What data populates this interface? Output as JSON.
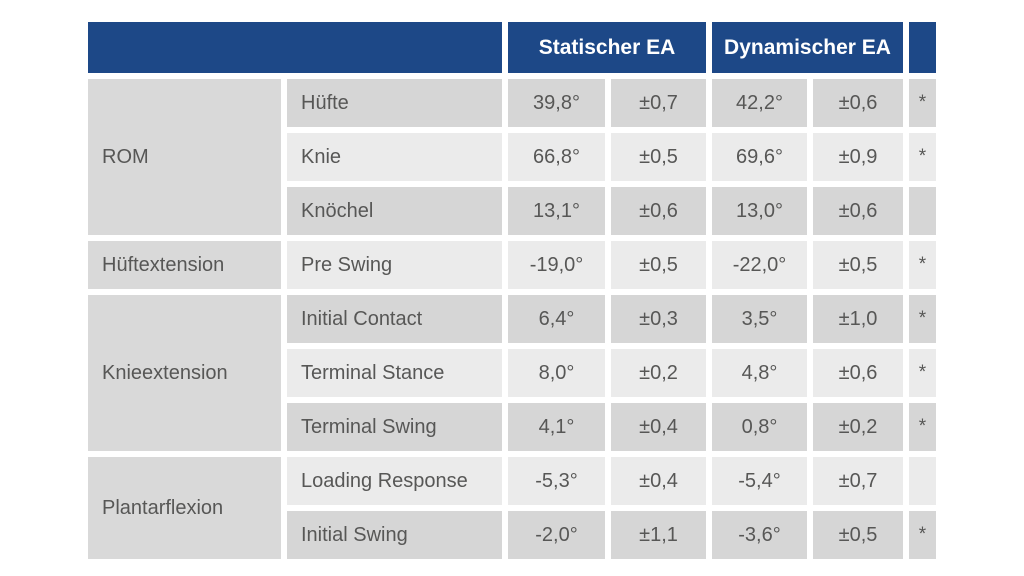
{
  "chart_data": {
    "type": "table",
    "title": "",
    "header": {
      "static_ea": "Statischer EA",
      "dynamic_ea": "Dynamischer EA",
      "significance_marker": "*"
    },
    "groups": [
      {
        "label": "ROM",
        "rowspan": 3
      },
      {
        "label": "Hüftextension",
        "rowspan": 1
      },
      {
        "label": "Knieextension",
        "rowspan": 3
      },
      {
        "label": "Plantarflexion",
        "rowspan": 2
      }
    ],
    "rows": [
      {
        "group": "ROM",
        "phase": "Hüfte",
        "static_mean": "39,8°",
        "static_sd": "±0,7",
        "dynamic_mean": "42,2°",
        "dynamic_sd": "±0,6",
        "significant": "*"
      },
      {
        "group": "ROM",
        "phase": "Knie",
        "static_mean": "66,8°",
        "static_sd": "±0,5",
        "dynamic_mean": "69,6°",
        "dynamic_sd": "±0,9",
        "significant": "*"
      },
      {
        "group": "ROM",
        "phase": "Knöchel",
        "static_mean": "13,1°",
        "static_sd": "±0,6",
        "dynamic_mean": "13,0°",
        "dynamic_sd": "±0,6",
        "significant": ""
      },
      {
        "group": "Hüftextension",
        "phase": "Pre Swing",
        "static_mean": "-19,0°",
        "static_sd": "±0,5",
        "dynamic_mean": "-22,0°",
        "dynamic_sd": "±0,5",
        "significant": "*"
      },
      {
        "group": "Knieextension",
        "phase": "Initial Contact",
        "static_mean": "6,4°",
        "static_sd": "±0,3",
        "dynamic_mean": "3,5°",
        "dynamic_sd": "±1,0",
        "significant": "*"
      },
      {
        "group": "Knieextension",
        "phase": "Terminal Stance",
        "static_mean": "8,0°",
        "static_sd": "±0,2",
        "dynamic_mean": "4,8°",
        "dynamic_sd": "±0,6",
        "significant": "*"
      },
      {
        "group": "Knieextension",
        "phase": "Terminal Swing",
        "static_mean": "4,1°",
        "static_sd": "±0,4",
        "dynamic_mean": "0,8°",
        "dynamic_sd": "±0,2",
        "significant": "*"
      },
      {
        "group": "Plantarflexion",
        "phase": "Loading Response",
        "static_mean": "-5,3°",
        "static_sd": "±0,4",
        "dynamic_mean": "-5,4°",
        "dynamic_sd": "±0,7",
        "significant": ""
      },
      {
        "group": "Plantarflexion",
        "phase": "Initial Swing",
        "static_mean": "-2,0°",
        "static_sd": "±1,1",
        "dynamic_mean": "-3,6°",
        "dynamic_sd": "±0,5",
        "significant": "*"
      }
    ],
    "colors": {
      "header_blue": "#1d4887",
      "header_text": "#ffffff",
      "row_dark": "#d6d6d6",
      "row_light": "#ebebeb",
      "group_cell": "#d9d9d9",
      "text": "#575756"
    }
  }
}
